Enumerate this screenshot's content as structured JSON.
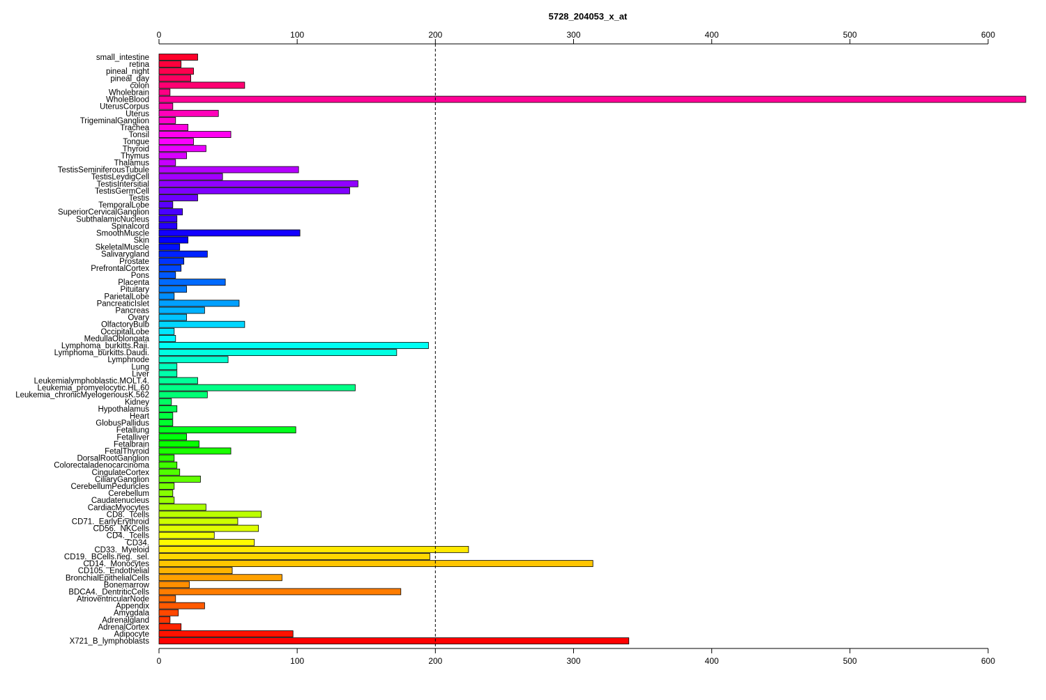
{
  "chart_data": {
    "type": "bar",
    "orientation": "horizontal",
    "title": "5728_204053_x_at",
    "xlabel": "",
    "ylabel": "",
    "xlim": [
      0,
      600
    ],
    "x_ticks": [
      0,
      100,
      200,
      300,
      400,
      500,
      600
    ],
    "x_tick_labels": [
      "0",
      "100",
      "200",
      "300",
      "400",
      "500",
      "600"
    ],
    "axes": [
      "top",
      "bottom"
    ],
    "reference_line": {
      "value": 200,
      "style": "dashed"
    },
    "grid": false,
    "legend": "none",
    "bar_colors": "rainbow gradient from top (red) through magenta, blue, cyan, green, yellow, orange to bottom (red)",
    "categories": [
      "small_intestine",
      "retina",
      "pineal_night",
      "pineal_day",
      "colon",
      "Wholebrain",
      "WholeBlood",
      "UterusCorpus",
      "Uterus",
      "TrigeminalGanglion",
      "Trachea",
      "Tonsil",
      "Tongue",
      "Thyroid",
      "Thymus",
      "Thalamus",
      "TestisSeminiferousTubule",
      "TestisLeydigCell",
      "TestisIntersitial",
      "TestisGermCell",
      "Testis",
      "TemporalLobe",
      "SuperiorCervicalGanglion",
      "SubthalamicNucleus",
      "Spinalcord",
      "SmoothMuscle",
      "Skin",
      "SkeletalMuscle",
      "Salivarygland",
      "Prostate",
      "PrefrontalCortex",
      "Pons",
      "Placenta",
      "Pituitary",
      "ParietalLobe",
      "PancreaticIslet",
      "Pancreas",
      "Ovary",
      "OlfactoryBulb",
      "OccipitalLobe",
      "MedullaOblongata",
      "Lymphoma_burkitts.Raji.",
      "Lymphoma_burkitts.Daudi.",
      "Lymphnode",
      "Lung",
      "Liver",
      "Leukemialymphoblastic.MOLT.4.",
      "Leukemia_promyelocytic.HL.60",
      "Leukemia_chronicMyelogenousK.562",
      "Kidney",
      "Hypothalamus",
      "Heart",
      "GlobusPallidus",
      "Fetallung",
      "Fetalliver",
      "Fetalbrain",
      "FetalThyroid",
      "DorsalRootGanglion",
      "Colorectaladenocarcinoma",
      "CingulateCortex",
      "CiliaryGanglion",
      "CerebellumPeduncles",
      "Cerebellum",
      "Caudatenucleus",
      "CardiacMyocytes",
      "CD8._Tcells",
      "CD71._EarlyErythroid",
      "CD56._NKCells",
      "CD4._Tcells",
      "CD34.",
      "CD33._Myeloid",
      "CD19._BCells.neg._sel.",
      "CD14._Monocytes",
      "CD105._Endothelial",
      "BronchialEpithelialCells",
      "Bonemarrow",
      "BDCA4._DentriticCells",
      "AtrioventricularNode",
      "Appendix",
      "Amygdala",
      "Adrenalgland",
      "AdrenalCortex",
      "Adipocyte",
      "X721_B_lymphoblasts"
    ],
    "values": [
      28,
      16,
      25,
      23,
      62,
      8,
      628,
      10,
      43,
      12,
      21,
      52,
      25,
      34,
      20,
      12,
      101,
      46,
      144,
      138,
      28,
      10,
      17,
      13,
      13,
      102,
      21,
      15,
      35,
      18,
      16,
      12,
      48,
      20,
      11,
      58,
      33,
      20,
      62,
      11,
      12,
      195,
      172,
      50,
      13,
      13,
      28,
      142,
      35,
      9,
      13,
      10,
      10,
      99,
      20,
      29,
      52,
      11,
      13,
      15,
      30,
      11,
      10,
      11,
      34,
      74,
      57,
      72,
      40,
      69,
      224,
      196,
      314,
      53,
      89,
      22,
      175,
      12,
      33,
      14,
      8,
      16,
      97,
      340
    ]
  }
}
